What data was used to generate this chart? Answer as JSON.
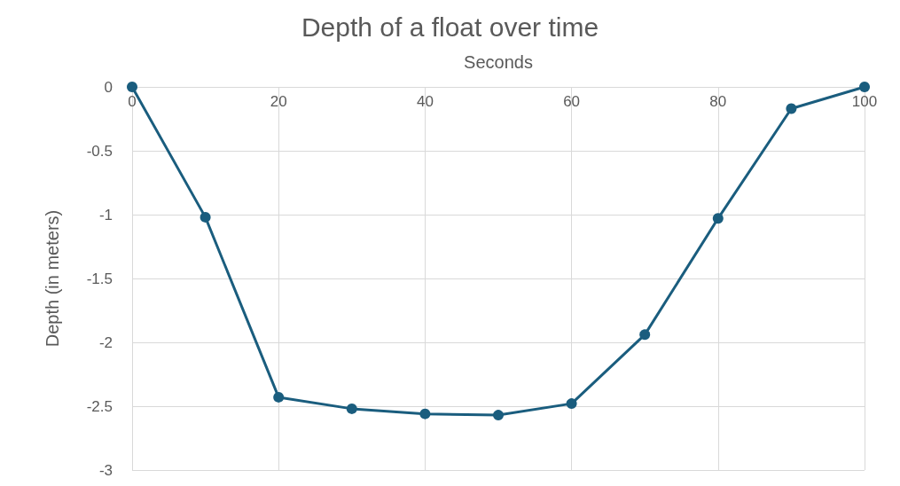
{
  "chart_data": {
    "type": "line",
    "title": "Depth of a float over time",
    "xlabel": "Seconds",
    "ylabel": "Depth (in meters)",
    "x": [
      0,
      10,
      20,
      30,
      40,
      50,
      60,
      70,
      80,
      90,
      100
    ],
    "series": [
      {
        "color": "#1a5d7e",
        "values": [
          0,
          -1.02,
          -2.43,
          -2.52,
          -2.56,
          -2.57,
          -2.48,
          -1.94,
          -1.03,
          -0.17,
          0
        ]
      }
    ],
    "xlim": [
      0,
      100
    ],
    "xticks": [
      0,
      20,
      40,
      60,
      80,
      100
    ],
    "ylim": [
      -3,
      0
    ],
    "yticks": [
      -3,
      -2.5,
      -2,
      -1.5,
      -1,
      -0.5,
      0
    ],
    "grid": true,
    "marker": "circle",
    "line_style": "solid"
  }
}
